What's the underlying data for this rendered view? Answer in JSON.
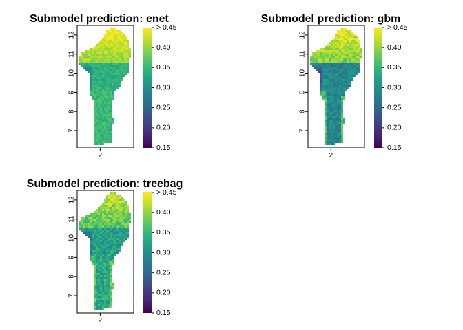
{
  "chart_data": [
    {
      "type": "heatmap",
      "title": "Submodel prediction: enet",
      "x_ticks": [
        2
      ],
      "y_ticks": [
        7,
        8,
        9,
        10,
        11,
        12
      ],
      "xlim": [
        0.7,
        3.9
      ],
      "ylim": [
        6.1,
        12.5
      ],
      "legend": {
        "placement": "right",
        "labels": [
          "> 0.45",
          "0.40",
          "0.35",
          "0.30",
          "0.25",
          "0.20",
          "0.15"
        ],
        "range": [
          0.15,
          0.45
        ],
        "colormap": "viridis"
      },
      "pattern": {
        "north": 0.4,
        "central": 0.34,
        "south": 0.35,
        "southwest_band": 0.35,
        "central_west": 0.3,
        "noise": 0.02
      }
    },
    {
      "type": "heatmap",
      "title": "Submodel prediction: gbm",
      "x_ticks": [
        2
      ],
      "y_ticks": [
        7,
        8,
        9,
        10,
        11,
        12
      ],
      "xlim": [
        0.7,
        3.9
      ],
      "ylim": [
        6.1,
        12.5
      ],
      "legend": {
        "placement": "right",
        "labels": [
          "> 0.45",
          "0.40",
          "0.35",
          "0.30",
          "0.25",
          "0.20",
          "0.15"
        ],
        "range": [
          0.15,
          0.45
        ],
        "colormap": "viridis"
      },
      "pattern": {
        "north": 0.39,
        "central": 0.29,
        "south": 0.29,
        "southwest_band": 0.36,
        "central_west": 0.24,
        "noise": 0.03
      }
    },
    {
      "type": "heatmap",
      "title": "Submodel prediction: treebag",
      "x_ticks": [
        2
      ],
      "y_ticks": [
        7,
        8,
        9,
        10,
        11,
        12
      ],
      "xlim": [
        0.7,
        3.9
      ],
      "ylim": [
        6.1,
        12.5
      ],
      "legend": {
        "placement": "right",
        "labels": [
          "> 0.45",
          "0.40",
          "0.35",
          "0.30",
          "0.25",
          "0.20",
          "0.15"
        ],
        "range": [
          0.15,
          0.45
        ],
        "colormap": "viridis"
      },
      "pattern": {
        "north": 0.37,
        "central": 0.32,
        "south": 0.33,
        "southwest_band": 0.37,
        "central_west": 0.28,
        "noise": 0.035
      }
    }
  ],
  "colors": {
    "viridis": [
      "#440154",
      "#482878",
      "#3e4989",
      "#31688e",
      "#26828e",
      "#1f9e89",
      "#35b779",
      "#6ece58",
      "#b5de2b",
      "#fde725"
    ],
    "frame": "#000000"
  }
}
